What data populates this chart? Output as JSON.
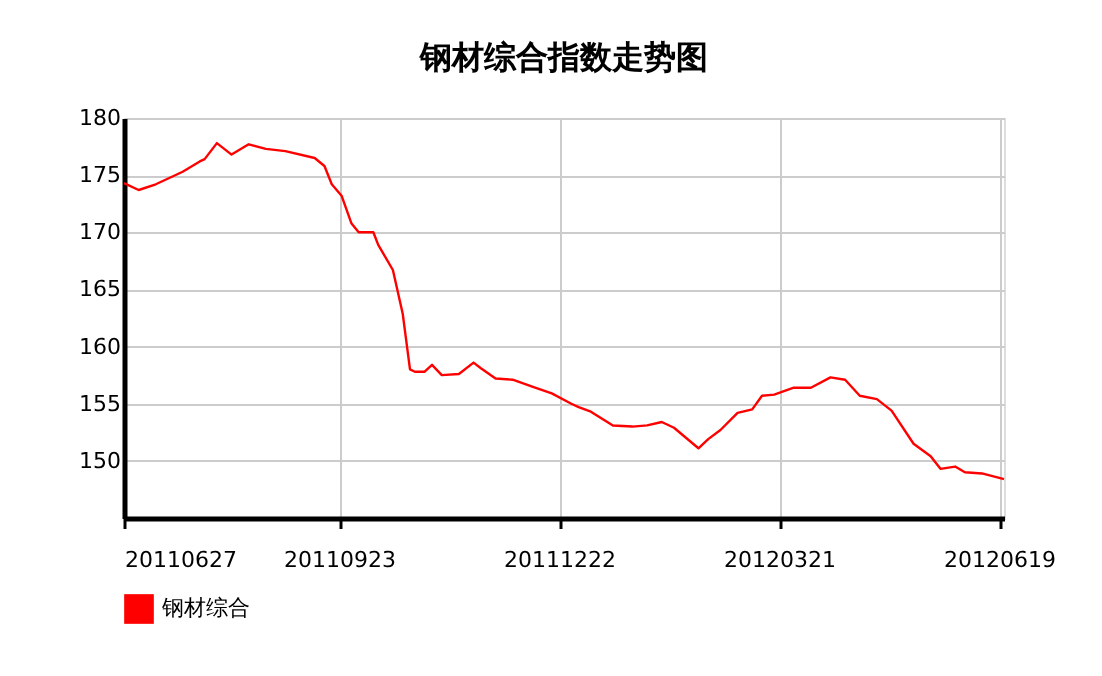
{
  "chart_data": {
    "type": "line",
    "title": "钢材综合指数走势图",
    "x": [
      "2011-06-27",
      "2011-07-03",
      "2011-07-10",
      "2011-07-21",
      "2011-07-28",
      "2011-07-30",
      "2011-08-04",
      "2011-08-10",
      "2011-08-17",
      "2011-08-24",
      "2011-09-01",
      "2011-09-13",
      "2011-09-17",
      "2011-09-20",
      "2011-09-24",
      "2011-09-28",
      "2011-10-01",
      "2011-10-07",
      "2011-10-09",
      "2011-10-15",
      "2011-10-19",
      "2011-10-22",
      "2011-10-24",
      "2011-10-28",
      "2011-10-31",
      "2011-11-04",
      "2011-11-11",
      "2011-11-17",
      "2011-11-20",
      "2011-11-26",
      "2011-12-03",
      "2011-12-11",
      "2011-12-19",
      "2011-12-27",
      "2011-12-30",
      "2012-01-04",
      "2012-01-13",
      "2012-01-21",
      "2012-01-27",
      "2012-02-02",
      "2012-02-07",
      "2012-02-17",
      "2012-02-21",
      "2012-02-26",
      "2012-03-04",
      "2012-03-10",
      "2012-03-14",
      "2012-03-19",
      "2012-03-27",
      "2012-04-03",
      "2012-04-11",
      "2012-04-17",
      "2012-04-23",
      "2012-04-30",
      "2012-05-06",
      "2012-05-15",
      "2012-05-22",
      "2012-05-26",
      "2012-06-01",
      "2012-06-05",
      "2012-06-12",
      "2012-06-21"
    ],
    "series": [
      {
        "name": "钢材综合",
        "color": "#ff0000",
        "values": [
          174.3,
          173.7,
          174.2,
          175.3,
          176.2,
          176.4,
          177.8,
          176.8,
          177.7,
          177.3,
          177.1,
          176.5,
          175.8,
          174.2,
          173.2,
          170.8,
          170.0,
          170.0,
          168.9,
          166.7,
          162.9,
          158.0,
          157.8,
          157.8,
          158.4,
          157.5,
          157.6,
          158.6,
          158.1,
          157.2,
          157.1,
          156.5,
          155.9,
          155.0,
          154.7,
          154.3,
          153.1,
          153.0,
          153.1,
          153.4,
          152.9,
          151.1,
          151.9,
          152.7,
          154.2,
          154.5,
          155.7,
          155.8,
          156.4,
          156.4,
          157.3,
          157.1,
          155.7,
          155.4,
          154.4,
          151.5,
          150.4,
          149.3,
          149.5,
          149.0,
          148.9,
          148.4
        ]
      }
    ],
    "xlim": [
      "2011-06-27",
      "2012-06-21"
    ],
    "xticks": [
      {
        "value": "2011-06-27",
        "label": "20110627"
      },
      {
        "value": "2011-09-23",
        "label": "20110923"
      },
      {
        "value": "2011-12-22",
        "label": "20111222"
      },
      {
        "value": "2012-03-21",
        "label": "20120321"
      },
      {
        "value": "2012-06-19",
        "label": "20120619"
      }
    ],
    "ylim": [
      145,
      180
    ],
    "yticks": [
      150,
      155,
      160,
      165,
      170,
      175,
      180
    ],
    "grid": true,
    "legend": "bottom left",
    "marker": "none",
    "line_style": "solid"
  }
}
